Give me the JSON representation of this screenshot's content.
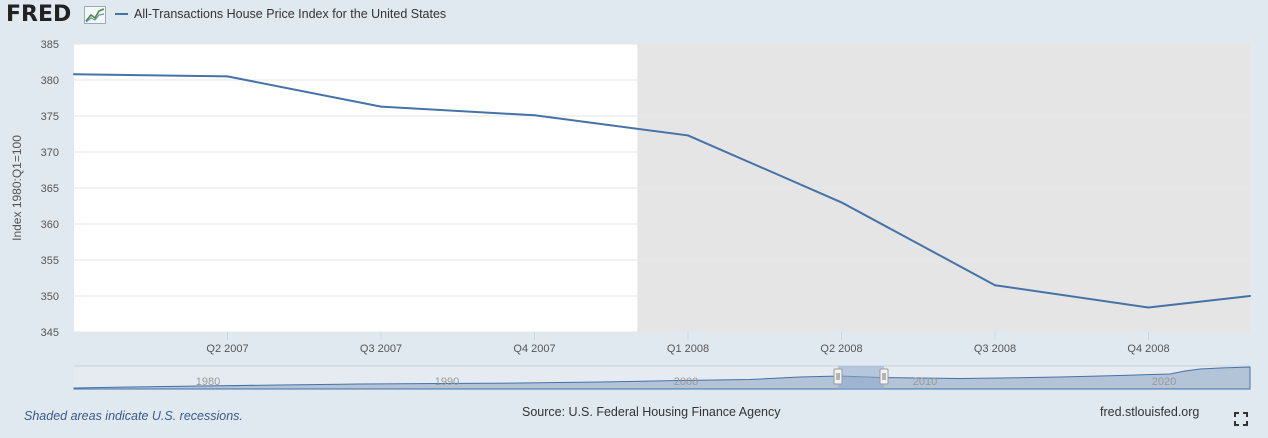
{
  "header": {
    "logo_text": "FRED",
    "legend_label": "All-Transactions House Price Index for the United States",
    "series_color": "#4572a7"
  },
  "chart_data": {
    "type": "line",
    "title": "",
    "xlabel": "",
    "ylabel": "Index 1980:Q1=100",
    "ylim": [
      345,
      385
    ],
    "yticks": [
      345,
      350,
      355,
      360,
      365,
      370,
      375,
      380,
      385
    ],
    "x_ticks": [
      "Q2 2007",
      "Q3 2007",
      "Q4 2007",
      "Q1 2008",
      "Q2 2008",
      "Q3 2008",
      "Q4 2008"
    ],
    "x": [
      "Q1 2007",
      "Q2 2007",
      "Q3 2007",
      "Q4 2007",
      "Q1 2008",
      "Q2 2008",
      "Q3 2008",
      "Q4 2008",
      "Q1 2009"
    ],
    "series": [
      {
        "name": "All-Transactions House Price Index for the United States",
        "values": [
          380.8,
          380.5,
          376.3,
          375.1,
          372.3,
          363.0,
          351.5,
          348.4,
          350.0
        ]
      }
    ],
    "recession_shading": {
      "from": "Q4 2007",
      "to": "Q1 2009"
    },
    "grid": true,
    "legend_position": "top-left"
  },
  "navigator": {
    "labels": [
      "1980",
      "1990",
      "2000",
      "2010",
      "2020"
    ]
  },
  "footer": {
    "recession_note": "Shaded areas indicate U.S. recessions.",
    "source": "Source: U.S. Federal Housing Finance Agency",
    "site": "fred.stlouisfed.org"
  }
}
